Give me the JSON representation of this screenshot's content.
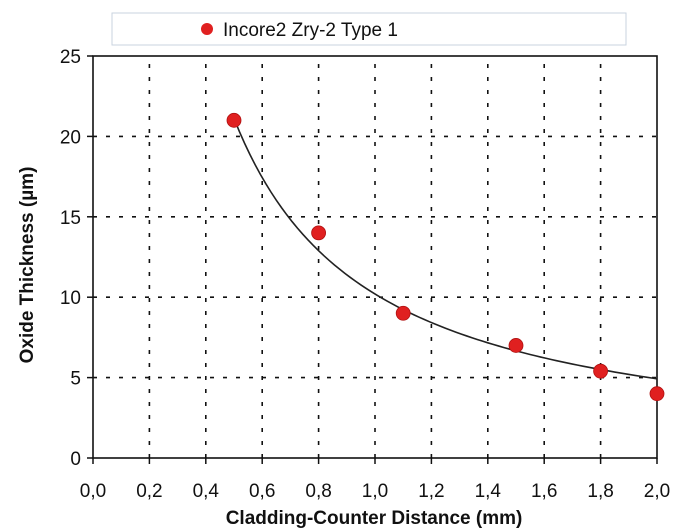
{
  "chart_data": {
    "type": "scatter",
    "xlabel": "Cladding-Counter Distance (mm)",
    "ylabel": "Oxide Thickness (µm)",
    "xlim": [
      0,
      2
    ],
    "ylim": [
      0,
      25
    ],
    "x_ticks": [
      "0,0",
      "0,2",
      "0,4",
      "0,6",
      "0,8",
      "1,0",
      "1,2",
      "1,4",
      "1,6",
      "1,8",
      "2,0"
    ],
    "y_ticks": [
      "0",
      "5",
      "10",
      "15",
      "20",
      "25"
    ],
    "grid": true,
    "legend_position": "top",
    "series": [
      {
        "name": "Incore2 Zry-2 Type 1",
        "color": "#e02020",
        "marker": "circle",
        "points": [
          {
            "x": 0.5,
            "y": 21.0
          },
          {
            "x": 0.8,
            "y": 14.0
          },
          {
            "x": 1.1,
            "y": 9.0
          },
          {
            "x": 1.5,
            "y": 7.0
          },
          {
            "x": 1.8,
            "y": 5.4
          },
          {
            "x": 2.0,
            "y": 4.0
          }
        ]
      }
    ],
    "trendline": {
      "type": "power",
      "color": "#222222",
      "x_range": [
        0.5,
        2.0
      ],
      "coefficient": 10.2,
      "exponent": -1.05
    }
  }
}
